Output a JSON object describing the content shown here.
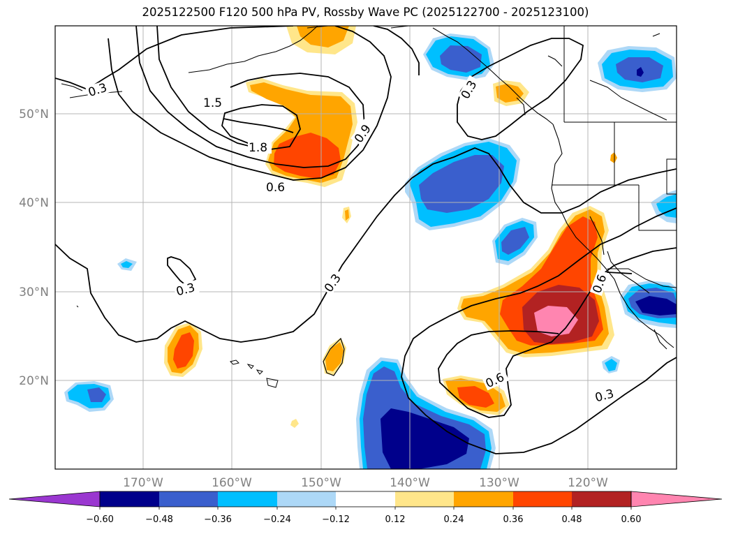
{
  "title": "2025122500 F120 500 hPa PV, Rossby Wave PC (2025122700 - 2025123100)",
  "lat_labels": [
    "50°N",
    "40°N",
    "30°N",
    "20°N"
  ],
  "lon_labels": [
    "170°W",
    "160°W",
    "150°W",
    "140°W",
    "130°W",
    "120°W"
  ],
  "contour_labels": [
    "0.3",
    "1.5",
    "1.8",
    "0.6",
    "0.9",
    "0.3",
    "0.3",
    "0.6",
    "0.6",
    "0.3",
    "0.3"
  ],
  "colorbar": {
    "tick_labels": [
      "−0.60",
      "−0.48",
      "−0.36",
      "−0.24",
      "−0.12",
      "0.12",
      "0.24",
      "0.36",
      "0.48",
      "0.60"
    ],
    "colors": [
      "#9a37d0",
      "#00008b",
      "#3a5fcd",
      "#00bfff",
      "#add8f7",
      "#ffffff",
      "#ffe68a",
      "#ffa500",
      "#ff4500",
      "#b22222",
      "#ff85b0"
    ]
  },
  "colors": {
    "neg_light": "#add8f7",
    "neg_mid": "#00bfff",
    "neg_strong": "#3a5fcd",
    "neg_max": "#00008b",
    "pos_light": "#ffe68a",
    "pos_mid": "#ffa500",
    "pos_strong": "#ff4500",
    "pos_max": "#b22222",
    "pos_extreme": "#ff85b0"
  }
}
